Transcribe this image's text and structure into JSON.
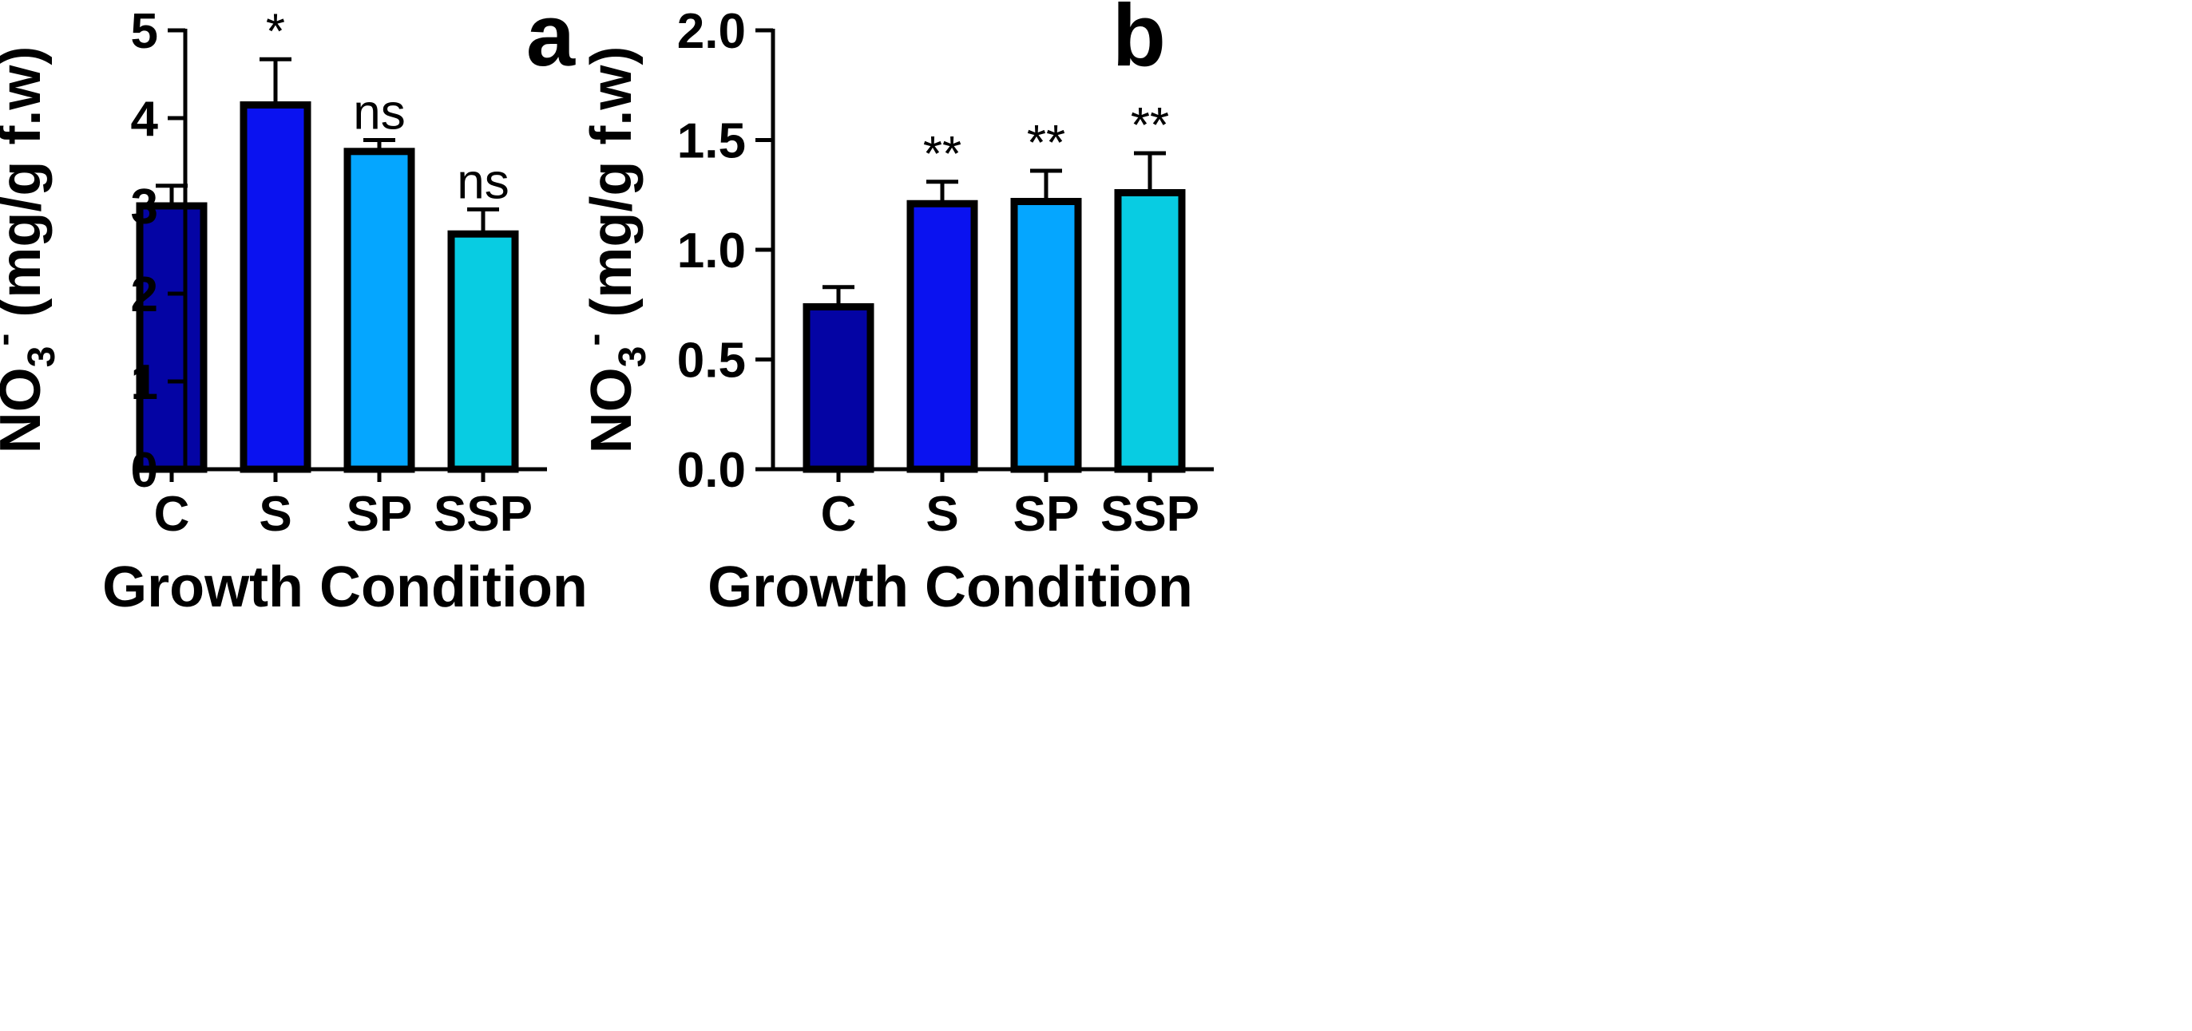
{
  "chart_data": [
    {
      "type": "bar",
      "panel_label": "a",
      "categories": [
        "C",
        "S",
        "SP",
        "SSP"
      ],
      "values": [
        3.0,
        4.15,
        3.62,
        2.68
      ],
      "error": [
        0.23,
        0.52,
        0.13,
        0.28
      ],
      "significance": [
        "",
        "*",
        "ns",
        "ns"
      ],
      "colors": [
        "#0404a4",
        "#0a12f0",
        "#05a6ff",
        "#08cce2"
      ],
      "xlabel": "Growth Condition",
      "ylabel_main": "NO",
      "ylabel_sub": "3",
      "ylabel_sup": "-",
      "ylabel_rest": " (mg/g f.w)",
      "ylim": [
        0,
        5
      ],
      "yticks": [
        0,
        1,
        2,
        3,
        4,
        5
      ],
      "ytick_labels": [
        "0",
        "1",
        "2",
        "3",
        "4",
        "5"
      ]
    },
    {
      "type": "bar",
      "panel_label": "b",
      "categories": [
        "C",
        "S",
        "SP",
        "SSP"
      ],
      "values": [
        0.74,
        1.21,
        1.22,
        1.26
      ],
      "error": [
        0.09,
        0.1,
        0.14,
        0.18
      ],
      "significance": [
        "",
        "**",
        "**",
        "**"
      ],
      "colors": [
        "#0404a4",
        "#0a12f0",
        "#05a6ff",
        "#08cce2"
      ],
      "xlabel": "Growth Condition",
      "ylabel_main": "NO",
      "ylabel_sub": "3",
      "ylabel_sup": "-",
      "ylabel_rest": " (mg/g f.w)",
      "ylim": [
        0,
        2.0
      ],
      "yticks": [
        0,
        0.5,
        1.0,
        1.5,
        2.0
      ],
      "ytick_labels": [
        "0.0",
        "0.5",
        "1.0",
        "1.5",
        "2.0"
      ]
    }
  ]
}
